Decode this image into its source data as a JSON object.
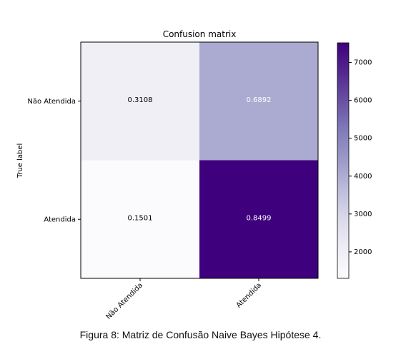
{
  "chart_data": {
    "type": "heatmap",
    "title": "Confusion matrix",
    "ylabel": "True label",
    "xlabel": "",
    "rows": [
      "Não Atendida",
      "Atendida"
    ],
    "cols": [
      "Não Atendida",
      "Atendida"
    ],
    "values": [
      [
        "0.3108",
        "0.6892"
      ],
      [
        "0.1501",
        "0.8499"
      ]
    ],
    "cell_colors": [
      [
        "#f1eff6",
        "#abaad1"
      ],
      [
        "#fbfafd",
        "#3f007d"
      ]
    ],
    "cell_text_colors": [
      [
        "#000000",
        "#ffffff"
      ],
      [
        "#000000",
        "#ffffff"
      ]
    ],
    "colorbar": {
      "min": 1300,
      "max": 7520,
      "ticks": [
        2000,
        3000,
        4000,
        5000,
        6000,
        7000
      ],
      "tick_labels": [
        "2000",
        "3000",
        "4000",
        "5000",
        "6000",
        "7000"
      ],
      "colormap": "Purples",
      "stops": [
        "#fcfbfd",
        "#efedf5",
        "#dadaeb",
        "#bcbddc",
        "#9e9ac8",
        "#807dba",
        "#6a51a3",
        "#54278f",
        "#3f007d"
      ]
    }
  },
  "caption": "Figura 8: Matriz de Confusão Naive Bayes Hipótese 4."
}
